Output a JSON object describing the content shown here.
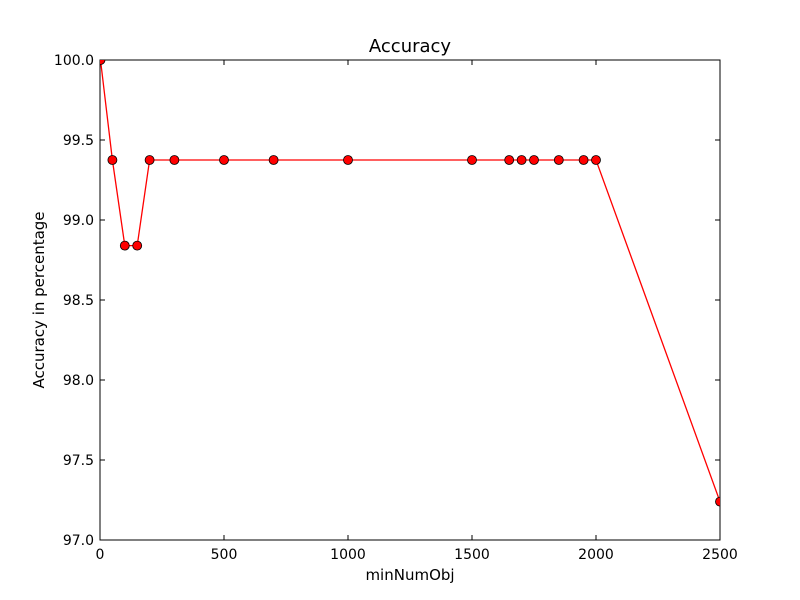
{
  "chart_data": {
    "type": "line",
    "title": "Accuracy",
    "xlabel": "minNumObj",
    "ylabel": "Accuracy in percentage",
    "xlim": [
      0,
      2500
    ],
    "ylim": [
      97.0,
      100.0
    ],
    "xticks": [
      0,
      500,
      1000,
      1500,
      2000,
      2500
    ],
    "xtick_labels": [
      "0",
      "500",
      "1000",
      "1500",
      "2000",
      "2500"
    ],
    "yticks": [
      97.0,
      97.5,
      98.0,
      98.5,
      99.0,
      99.5,
      100.0
    ],
    "ytick_labels": [
      "97.0",
      "97.5",
      "98.0",
      "98.5",
      "99.0",
      "99.5",
      "100.0"
    ],
    "grid": false,
    "series": [
      {
        "color": "#ff0000",
        "marker": "circle",
        "x": [
          2,
          50,
          100,
          150,
          200,
          300,
          500,
          700,
          1000,
          1500,
          1650,
          1700,
          1750,
          1850,
          1950,
          2000,
          2500
        ],
        "y": [
          100.0,
          99.375,
          98.84,
          98.84,
          99.375,
          99.375,
          99.375,
          99.375,
          99.375,
          99.375,
          99.375,
          99.375,
          99.375,
          99.375,
          99.375,
          99.375,
          97.24
        ]
      }
    ]
  }
}
